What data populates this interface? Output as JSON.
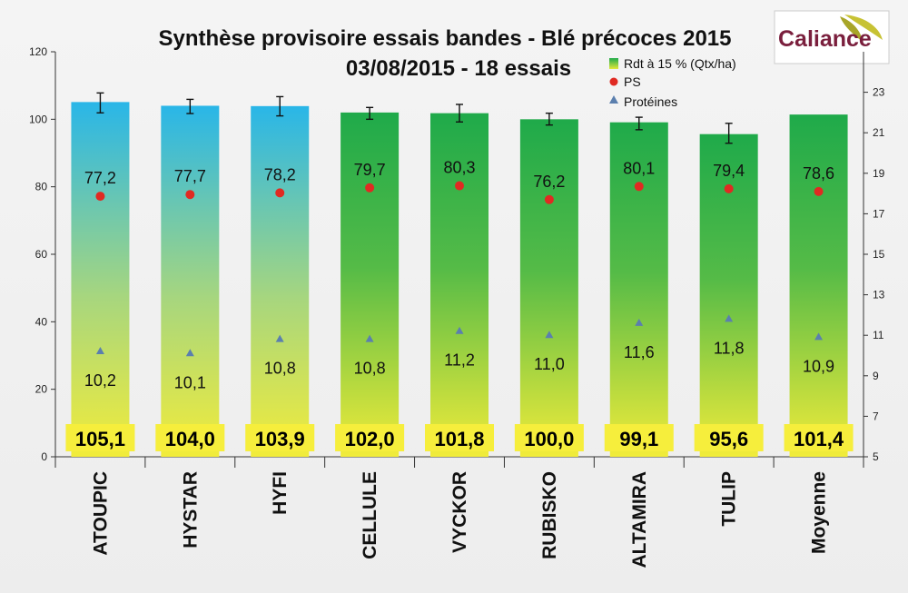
{
  "logo": {
    "text": "Caliance"
  },
  "colors": {
    "bar_blue_top": "#29b6e8",
    "bar_green_top": "#1faa4a",
    "bar_bottom": "#f2ec3a",
    "ps_marker": "#e02a22",
    "protein_marker": "#5b7fae",
    "label_box": "#f6ee3c"
  },
  "chart_data": {
    "type": "bar",
    "title": "Synthèse provisoire essais bandes - Blé précoces 2015",
    "subtitle": "03/08/2015 - 18 essais",
    "categories": [
      "ATOUPIC",
      "HYSTAR",
      "HYFI",
      "CELLULE",
      "VYCKOR",
      "RUBISKO",
      "ALTAMIRA",
      "TULIP",
      "Moyenne"
    ],
    "series": [
      {
        "name": "Rdt à 15 % (Qtx/ha)",
        "axis": "left",
        "values": [
          105.1,
          104.0,
          103.9,
          102.0,
          101.8,
          100.0,
          99.1,
          95.6,
          101.4
        ],
        "labels": [
          "105,1",
          "104,0",
          "103,9",
          "102,0",
          "101,8",
          "100,0",
          "99,1",
          "95,6",
          "101,4"
        ],
        "bar_color": [
          "blue",
          "blue",
          "blue",
          "green",
          "green",
          "green",
          "green",
          "green",
          "green"
        ],
        "error_low": [
          101.9,
          101.7,
          101.0,
          100.0,
          99.2,
          98.3,
          96.9,
          92.9,
          null
        ],
        "error_high": [
          107.8,
          105.9,
          106.7,
          103.5,
          104.4,
          101.8,
          100.6,
          98.8,
          null
        ]
      },
      {
        "name": "PS",
        "axis": "left",
        "marker": "circle",
        "values": [
          77.2,
          77.7,
          78.2,
          79.7,
          80.3,
          76.2,
          80.1,
          79.4,
          78.6
        ],
        "labels": [
          "77,2",
          "77,7",
          "78,2",
          "79,7",
          "80,3",
          "76,2",
          "80,1",
          "79,4",
          "78,6"
        ]
      },
      {
        "name": "Protéines",
        "axis": "right",
        "marker": "triangle",
        "values": [
          10.2,
          10.1,
          10.8,
          10.8,
          11.2,
          11.0,
          11.6,
          11.8,
          10.9
        ],
        "labels": [
          "10,2",
          "10,1",
          "10,8",
          "10,8",
          "11,2",
          "11,0",
          "11,6",
          "11,8",
          "10,9"
        ]
      }
    ],
    "y_left": {
      "min": 0,
      "max": 120,
      "ticks": [
        "0",
        "20",
        "40",
        "60",
        "80",
        "100",
        "120"
      ]
    },
    "y_right": {
      "min": 5,
      "max": 25,
      "ticks": [
        "5",
        "7",
        "9",
        "11",
        "13",
        "15",
        "17",
        "19",
        "21",
        "23"
      ]
    },
    "grid": false,
    "legend_position": "top-right"
  }
}
